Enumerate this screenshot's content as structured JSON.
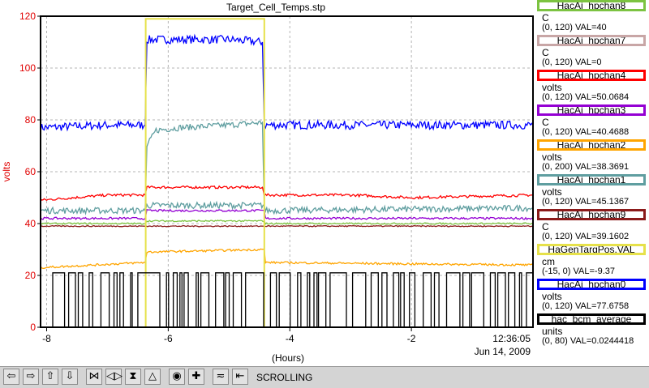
{
  "chart_data": {
    "type": "line",
    "title": "Target_Cell_Temps.stp",
    "xlabel": "(Hours)",
    "ylabel": "volts",
    "xlim": [
      -8.1,
      0
    ],
    "ylim": [
      0,
      120
    ],
    "x_ticks": [
      "-8",
      "-6",
      "-4",
      "-2"
    ],
    "y_ticks": [
      "0",
      "20",
      "40",
      "60",
      "80",
      "100",
      "120"
    ],
    "grid": true,
    "timestamp_time": "12:36:05",
    "timestamp_date": "Jun 14, 2009",
    "series": [
      {
        "name": "HacAi_hpchan0",
        "color": "#0000ff",
        "points": [
          [
            -8.1,
            77
          ],
          [
            -7,
            78
          ],
          [
            -6.38,
            78
          ],
          [
            -6.35,
            111
          ],
          [
            -5,
            111
          ],
          [
            -4.45,
            110
          ],
          [
            -4.42,
            78
          ],
          [
            -3,
            78
          ],
          [
            -2,
            78
          ],
          [
            0,
            78
          ]
        ]
      },
      {
        "name": "HacAi_hpchan1",
        "color": "#5f9ea0",
        "points": [
          [
            -6.38,
            45
          ],
          [
            -6.35,
            70
          ],
          [
            -6.2,
            76
          ],
          [
            -5.8,
            77
          ],
          [
            -5,
            78
          ],
          [
            -4.45,
            79
          ],
          [
            -4.42,
            46
          ]
        ]
      },
      {
        "name": "HacAi_hpchan4",
        "color": "#ff0000",
        "points": [
          [
            -8.1,
            49
          ],
          [
            -7,
            51
          ],
          [
            -6.38,
            51
          ],
          [
            -6.35,
            54
          ],
          [
            -5,
            54
          ],
          [
            -4.45,
            54
          ],
          [
            -4.42,
            51
          ],
          [
            -3,
            51
          ],
          [
            -2,
            50
          ],
          [
            0,
            51
          ]
        ]
      },
      {
        "name": "HacAi_hpchan1",
        "color": "#5f9ea0",
        "points": [
          [
            -8.1,
            45
          ],
          [
            -6.38,
            45
          ],
          [
            -6.35,
            47
          ],
          [
            -4.42,
            47
          ],
          [
            -4.4,
            45
          ],
          [
            0,
            46
          ]
        ]
      },
      {
        "name": "HacAi_hpchan3",
        "color": "#9400d3",
        "points": [
          [
            -8.1,
            42
          ],
          [
            -6.38,
            42
          ],
          [
            -6.35,
            45
          ],
          [
            -4.42,
            45
          ],
          [
            -4.4,
            42
          ],
          [
            0,
            42
          ]
        ]
      },
      {
        "name": "HacAi_hpchan8",
        "color": "#7cc341",
        "points": [
          [
            -8.1,
            40
          ],
          [
            -6.38,
            40
          ],
          [
            -6.35,
            41
          ],
          [
            -4.42,
            41
          ],
          [
            -4.4,
            40
          ],
          [
            0,
            40
          ]
        ]
      },
      {
        "name": "HacAi_hpchan9",
        "color": "#8b1a1a",
        "points": [
          [
            -8.1,
            39
          ],
          [
            0,
            39
          ]
        ]
      },
      {
        "name": "HacAi_hpchan2",
        "color": "#ffa500",
        "points": [
          [
            -8.1,
            23
          ],
          [
            -6.38,
            25
          ],
          [
            -6.35,
            29
          ],
          [
            -4.42,
            30
          ],
          [
            -4.4,
            25
          ],
          [
            0,
            24
          ]
        ]
      },
      {
        "name": "HaGenTargPos.VAL",
        "color": "#e6e14a",
        "points": [
          [
            -6.37,
            0
          ],
          [
            -6.37,
            119
          ],
          [
            -4.42,
            119
          ],
          [
            -4.42,
            0
          ]
        ]
      },
      {
        "name": "hac_bcm_average",
        "color": "#000000",
        "points": [
          [
            -8.1,
            0
          ],
          [
            -7.9,
            0
          ],
          [
            -7.88,
            21
          ],
          [
            0,
            21
          ]
        ]
      }
    ]
  },
  "legend": [
    {
      "name": "HacAi_hpchan8",
      "color": "#7cc341",
      "unit": "C",
      "range": "(0, 120) VAL=40"
    },
    {
      "name": "HacAi_hpchan7",
      "color": "#c8a6a6",
      "unit": "C",
      "range": "(0, 120) VAL=0"
    },
    {
      "name": "HacAi_hpchan4",
      "color": "#ff0000",
      "unit": "volts",
      "range": "(0, 120) VAL=50.0684"
    },
    {
      "name": "HacAi_hpchan3",
      "color": "#9400d3",
      "unit": "C",
      "range": "(0, 120) VAL=40.4688"
    },
    {
      "name": "HacAi_hpchan2",
      "color": "#ffa500",
      "unit": "volts",
      "range": "(0, 200) VAL=38.3691"
    },
    {
      "name": "HacAi_hpchan1",
      "color": "#5f9ea0",
      "unit": "volts",
      "range": "(0, 120) VAL=45.1367"
    },
    {
      "name": "HacAi_hpchan9",
      "color": "#8b1a1a",
      "unit": "C",
      "range": "(0, 120) VAL=39.1602"
    },
    {
      "name": "HaGenTargPos.VAL",
      "color": "#e6e14a",
      "unit": "cm",
      "range": "(-15, 0) VAL=-9.37"
    },
    {
      "name": "HacAi_hpchan0",
      "color": "#0000ff",
      "unit": "volts",
      "range": "(0, 120) VAL=77.6758"
    },
    {
      "name": "hac_bcm_average",
      "color": "#000000",
      "unit": "units",
      "range": "(0, 80) VAL=0.0244418"
    }
  ],
  "toolbar": {
    "status": "SCROLLING",
    "buttons": [
      {
        "name": "scroll-left-icon",
        "glyph": "⇦"
      },
      {
        "name": "scroll-right-icon",
        "glyph": "⇨"
      },
      {
        "name": "scroll-up-icon",
        "glyph": "⇧"
      },
      {
        "name": "scroll-down-icon",
        "glyph": "⇩"
      },
      {
        "name": "zoom-in-horizontal-icon",
        "glyph": "⋈"
      },
      {
        "name": "zoom-out-horizontal-icon",
        "glyph": "◁▷"
      },
      {
        "name": "zoom-in-vertical-icon",
        "glyph": "⧗"
      },
      {
        "name": "zoom-out-vertical-icon",
        "glyph": "△"
      },
      {
        "name": "record-icon",
        "glyph": "◉"
      },
      {
        "name": "add-icon",
        "glyph": "✚"
      },
      {
        "name": "graph-icon",
        "glyph": "≂"
      },
      {
        "name": "go-to-end-icon",
        "glyph": "⇤"
      }
    ]
  },
  "colors": {
    "grid": "#b4b4b4",
    "axis": "#000000",
    "ylabel": "#e00000",
    "ytick": "#e00000"
  }
}
